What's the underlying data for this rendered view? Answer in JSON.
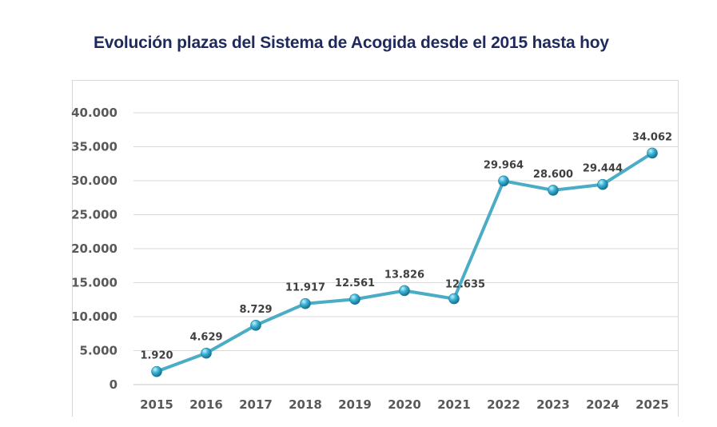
{
  "chart_data": {
    "type": "line",
    "title": "Evolución plazas del Sistema de Acogida desde el 2015 hasta hoy",
    "xlabel": "",
    "ylabel": "",
    "categories": [
      "2015",
      "2016",
      "2017",
      "2018",
      "2019",
      "2020",
      "2021",
      "2022",
      "2023",
      "2024",
      "2025"
    ],
    "series": [
      {
        "name": "Plazas",
        "values": [
          1920,
          4629,
          8729,
          11917,
          12561,
          13826,
          12635,
          29964,
          28600,
          29444,
          34062
        ],
        "labels": [
          "1.920",
          "4.629",
          "8.729",
          "11.917",
          "12.561",
          "13.826",
          "12.635",
          "29.964",
          "28.600",
          "29.444",
          "34.062"
        ],
        "color": "#4bacc6"
      }
    ],
    "ylim": [
      0,
      40000
    ],
    "yticks": [
      0,
      5000,
      10000,
      15000,
      20000,
      25000,
      30000,
      35000,
      40000
    ],
    "ytick_labels": [
      "0",
      "5.000",
      "10.000",
      "15.000",
      "20.000",
      "25.000",
      "30.000",
      "35.000",
      "40.000"
    ],
    "grid": true,
    "legend": "none"
  },
  "colors": {
    "title": "#1f2a5c",
    "line": "#4bacc6",
    "marker": "#31a5c9",
    "grid": "#d9d9d9",
    "tick": "#595959"
  }
}
